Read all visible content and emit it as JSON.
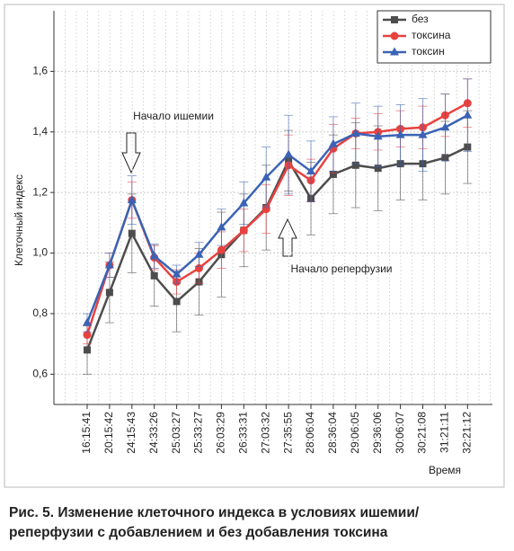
{
  "chart_data": {
    "type": "line",
    "y_label": "Клеточный индекс",
    "x_label": "Время",
    "categories": [
      "16:15:41",
      "20:15:42",
      "24:15:43",
      "24:33:26",
      "25:03:27",
      "25:33:27",
      "26:03:29",
      "26:33:31",
      "27:03:32",
      "27:35:55",
      "28:06:04",
      "28:36:04",
      "29:06:05",
      "29:36:06",
      "30:06:07",
      "30:21:08",
      "31:21:11",
      "32:21:12"
    ],
    "series": [
      {
        "name": "без",
        "color": "#4d4d4d",
        "marker": "square",
        "values": [
          0.68,
          0.87,
          1.065,
          0.925,
          0.84,
          0.905,
          0.995,
          1.075,
          1.15,
          1.305,
          1.18,
          1.26,
          1.29,
          1.28,
          1.295,
          1.295,
          1.315,
          1.35
        ],
        "errors": [
          0.08,
          0.1,
          0.13,
          0.1,
          0.1,
          0.11,
          0.14,
          0.12,
          0.14,
          0.1,
          0.12,
          0.13,
          0.14,
          0.14,
          0.12,
          0.12,
          0.12,
          0.12
        ]
      },
      {
        "name": "токсина",
        "color": "#e8423f",
        "marker": "circle",
        "values": [
          0.73,
          0.96,
          1.175,
          0.985,
          0.905,
          0.95,
          1.01,
          1.075,
          1.145,
          1.29,
          1.24,
          1.345,
          1.395,
          1.4,
          1.41,
          1.415,
          1.455,
          1.495
        ],
        "errors": [
          0.03,
          0.04,
          0.06,
          0.04,
          0.04,
          0.05,
          0.06,
          0.07,
          0.08,
          0.1,
          0.07,
          0.08,
          0.05,
          0.06,
          0.06,
          0.07,
          0.07,
          0.08
        ]
      },
      {
        "name": "токсин",
        "color": "#3b63b5",
        "marker": "triangle",
        "values": [
          0.77,
          0.96,
          1.175,
          0.99,
          0.93,
          0.995,
          1.085,
          1.165,
          1.25,
          1.325,
          1.27,
          1.36,
          1.395,
          1.385,
          1.39,
          1.39,
          1.415,
          1.455
        ],
        "errors": [
          0.03,
          0.04,
          0.08,
          0.04,
          0.03,
          0.04,
          0.06,
          0.07,
          0.1,
          0.13,
          0.1,
          0.09,
          0.1,
          0.1,
          0.1,
          0.12,
          0.11,
          0.12
        ]
      }
    ],
    "ylim": [
      0.5,
      1.8
    ],
    "yticks": [
      {
        "value": 0.6,
        "label": "0,6"
      },
      {
        "value": 0.8,
        "label": "0,8"
      },
      {
        "value": 1.0,
        "label": "1,0"
      },
      {
        "value": 1.2,
        "label": "1,2"
      },
      {
        "value": 1.4,
        "label": "1,4"
      },
      {
        "value": 1.6,
        "label": "1,6"
      }
    ],
    "grid": true,
    "legend": "upper right",
    "annotations": [
      {
        "text": "Начало ишемии"
      },
      {
        "text": "Начало реперфузии"
      }
    ],
    "caption": [
      "Рис. 5. Изменение клеточного индекса в условиях ишемии/",
      "реперфузии с добавлением и без добавления токсина"
    ]
  }
}
